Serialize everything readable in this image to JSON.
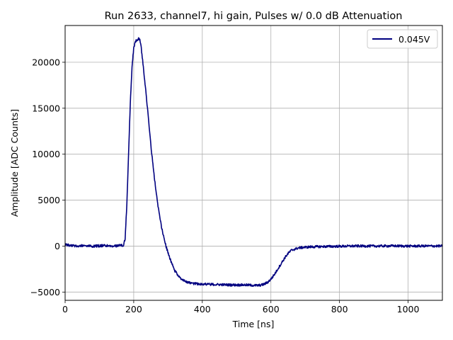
{
  "chart_data": {
    "type": "line",
    "title": "Run 2633, channel7, hi gain, Pulses w/ 0.0 dB Attenuation",
    "xlabel": "Time [ns]",
    "ylabel": "Amplitude [ADC Counts]",
    "xlim": [
      0,
      1100
    ],
    "ylim": [
      -5900,
      24000
    ],
    "xticks": [
      0,
      200,
      400,
      600,
      800,
      1000
    ],
    "xtick_labels": [
      "0",
      "200",
      "400",
      "600",
      "800",
      "1000"
    ],
    "yticks": [
      -5000,
      0,
      5000,
      10000,
      15000,
      20000
    ],
    "ytick_labels": [
      "−5000",
      "0",
      "5000",
      "10000",
      "15000",
      "20000"
    ],
    "grid": true,
    "legend_position": "top-right",
    "colors": {
      "series": "#000080",
      "grid": "#b0b0b0"
    },
    "series": [
      {
        "name": "0.045V",
        "x": [
          0,
          20,
          40,
          60,
          80,
          100,
          120,
          140,
          160,
          170,
          175,
          180,
          185,
          190,
          195,
          200,
          205,
          210,
          215,
          218,
          222,
          226,
          230,
          235,
          240,
          245,
          250,
          255,
          260,
          265,
          270,
          275,
          280,
          285,
          290,
          295,
          300,
          305,
          310,
          320,
          330,
          340,
          350,
          360,
          370,
          380,
          400,
          420,
          440,
          460,
          480,
          500,
          520,
          540,
          560,
          570,
          580,
          590,
          600,
          610,
          620,
          630,
          640,
          650,
          660,
          680,
          700,
          720,
          750,
          800,
          850,
          900,
          950,
          1000,
          1050,
          1100
        ],
        "y": [
          150,
          50,
          0,
          80,
          -20,
          30,
          60,
          -40,
          100,
          50,
          800,
          4500,
          10000,
          15500,
          19500,
          21500,
          22300,
          22400,
          22600,
          22500,
          21500,
          20200,
          18800,
          17000,
          15000,
          13000,
          11000,
          9200,
          7500,
          6000,
          4600,
          3400,
          2300,
          1400,
          600,
          -100,
          -700,
          -1300,
          -1800,
          -2700,
          -3200,
          -3600,
          -3850,
          -3950,
          -4050,
          -4100,
          -4120,
          -4150,
          -4180,
          -4200,
          -4220,
          -4230,
          -4220,
          -4250,
          -4280,
          -4250,
          -4150,
          -3950,
          -3600,
          -3100,
          -2500,
          -1900,
          -1300,
          -800,
          -450,
          -200,
          -120,
          -80,
          -50,
          -20,
          10,
          0,
          20,
          0,
          10,
          0
        ]
      }
    ]
  }
}
